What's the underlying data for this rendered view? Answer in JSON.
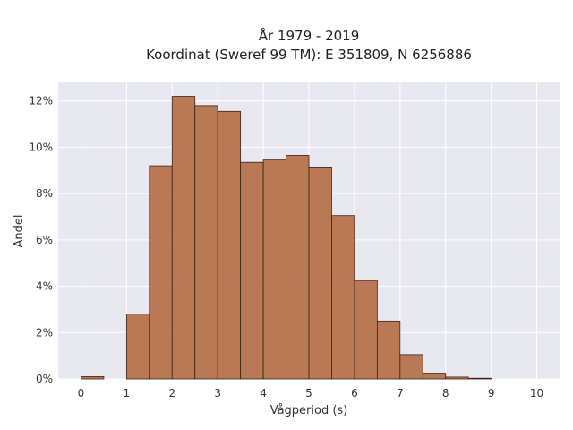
{
  "chart_data": {
    "type": "bar",
    "title": "År 1979 - 2019",
    "subtitle": "Koordinat (Sweref 99 TM): E 351809, N 6256886",
    "xlabel": "Vågperiod (s)",
    "ylabel": "Andel",
    "xlim": [
      -0.5,
      10.5
    ],
    "ylim": [
      0,
      12.8
    ],
    "xticks": [
      0,
      1,
      2,
      3,
      4,
      5,
      6,
      7,
      8,
      9,
      10
    ],
    "yticks": [
      0,
      2,
      4,
      6,
      8,
      10,
      12
    ],
    "ytick_format": "%",
    "grid": true,
    "bin_width": 0.5,
    "bins": [
      {
        "x0": 0.0,
        "value": 0.1
      },
      {
        "x0": 1.0,
        "value": 2.8
      },
      {
        "x0": 1.5,
        "value": 9.2
      },
      {
        "x0": 2.0,
        "value": 12.2
      },
      {
        "x0": 2.5,
        "value": 11.8
      },
      {
        "x0": 3.0,
        "value": 11.55
      },
      {
        "x0": 3.5,
        "value": 9.35
      },
      {
        "x0": 4.0,
        "value": 9.45
      },
      {
        "x0": 4.5,
        "value": 9.65
      },
      {
        "x0": 5.0,
        "value": 9.15
      },
      {
        "x0": 5.5,
        "value": 7.05
      },
      {
        "x0": 6.0,
        "value": 4.25
      },
      {
        "x0": 6.5,
        "value": 2.5
      },
      {
        "x0": 7.0,
        "value": 1.05
      },
      {
        "x0": 7.5,
        "value": 0.25
      },
      {
        "x0": 8.0,
        "value": 0.08
      },
      {
        "x0": 8.5,
        "value": 0.03
      }
    ],
    "colors": {
      "bar": "#b46f48",
      "bar_edge": "#3a2418",
      "plot_background": "#e8e8f1",
      "grid": "#ffffff"
    }
  }
}
